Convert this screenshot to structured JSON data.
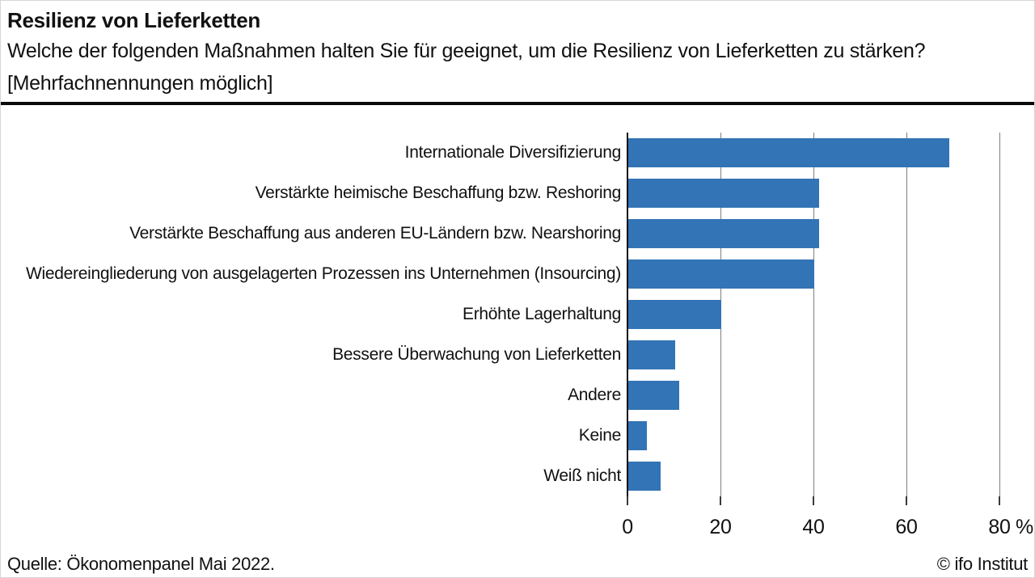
{
  "header": {
    "title": "Resilienz von Lieferketten",
    "subtitle": "Welche der folgenden Maßnahmen halten Sie für geeignet, um die Resilienz von Lieferketten zu stärken? [Mehrfachnennungen möglich]"
  },
  "chart_data": {
    "type": "bar",
    "orientation": "horizontal",
    "title": "Resilienz von Lieferketten",
    "categories": [
      "Internationale Diversifizierung",
      "Verstärkte heimische Beschaffung bzw. Reshoring",
      "Verstärkte Beschaffung aus anderen EU-Ländern bzw. Nearshoring",
      "Wiedereingliederung von ausgelagerten Prozessen ins Unternehmen (Insourcing)",
      "Erhöhte Lagerhaltung",
      "Bessere Überwachung von Lieferketten",
      "Andere",
      "Keine",
      "Weiß nicht"
    ],
    "values": [
      69,
      41,
      41,
      40,
      20,
      10,
      11,
      4,
      7
    ],
    "xlabel": "",
    "ylabel": "",
    "x_ticks": [
      0,
      20,
      40,
      60,
      80
    ],
    "unit": "%",
    "xlim": [
      0,
      88
    ],
    "grid": true,
    "legend": false,
    "bar_color": "#3274B5",
    "gridline_color": "#7f7f7f",
    "axis_color": "#111111"
  },
  "footer": {
    "source": "Quelle: Ökonomenpanel Mai 2022.",
    "copyright": "© ifo Institut"
  }
}
